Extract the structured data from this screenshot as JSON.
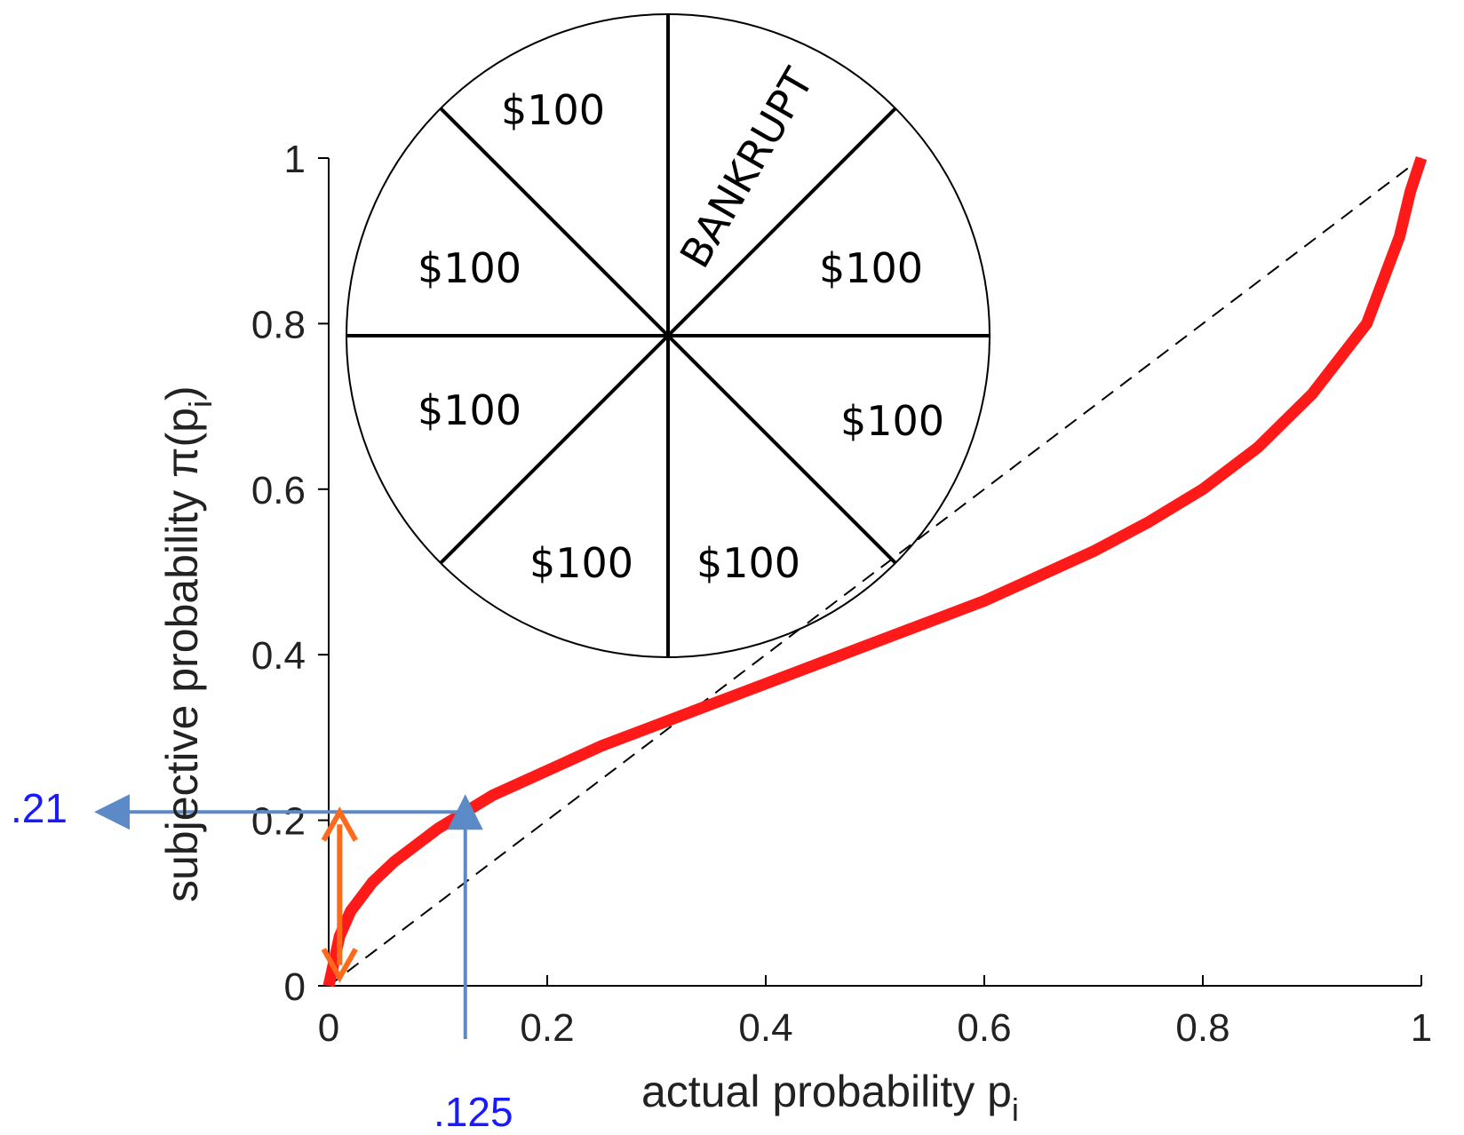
{
  "chart_data": {
    "type": "line",
    "xlabel": "actual probability p",
    "xlabel_subscript": "i",
    "ylabel": "subjective probability π(p",
    "ylabel_subscript": "i",
    "ylabel_close": ")",
    "xlim": [
      0,
      1
    ],
    "ylim": [
      0,
      1
    ],
    "x_ticks": [
      "0",
      "0.2",
      "0.4",
      "0.6",
      "0.8",
      "1"
    ],
    "x_tick_values": [
      0,
      0.2,
      0.4,
      0.6,
      0.8,
      1
    ],
    "y_ticks": [
      "0",
      "0.2",
      "0.4",
      "0.6",
      "0.8",
      "1"
    ],
    "y_tick_values": [
      0,
      0.2,
      0.4,
      0.6,
      0.8,
      1
    ],
    "series": [
      {
        "style": "solid",
        "color": "#ff1a1a",
        "x": [
          0,
          0.01,
          0.02,
          0.04,
          0.06,
          0.08,
          0.1,
          0.125,
          0.15,
          0.2,
          0.25,
          0.3,
          0.35,
          0.4,
          0.45,
          0.5,
          0.55,
          0.6,
          0.65,
          0.7,
          0.75,
          0.8,
          0.85,
          0.9,
          0.95,
          0.98,
          0.99,
          1
        ],
        "y": [
          0,
          0.06,
          0.09,
          0.125,
          0.15,
          0.17,
          0.19,
          0.21,
          0.23,
          0.26,
          0.29,
          0.315,
          0.34,
          0.365,
          0.39,
          0.415,
          0.44,
          0.465,
          0.495,
          0.525,
          0.56,
          0.6,
          0.65,
          0.715,
          0.8,
          0.905,
          0.96,
          1.0
        ]
      },
      {
        "style": "dashed",
        "color": "#000000",
        "x": [
          0,
          1
        ],
        "y": [
          0,
          1
        ]
      }
    ],
    "annotations": [
      {
        "text": ".21",
        "color": "#1a1aff",
        "arrow_color": "#5b8ac6",
        "y": 0.21
      },
      {
        "text": ".125",
        "color": "#1a1aff",
        "arrow_color": "#5b8ac6",
        "x": 0.125
      }
    ],
    "orange_arrow": {
      "color": "#ff6a1a",
      "x": 0.01,
      "y_from": 0.01,
      "y_to": 0.21
    },
    "grid": false,
    "inset": {
      "type": "pie",
      "slices": [
        "BANKRUPT",
        "$100",
        "$100",
        "$100",
        "$100",
        "$100",
        "$100",
        "$100"
      ]
    }
  }
}
